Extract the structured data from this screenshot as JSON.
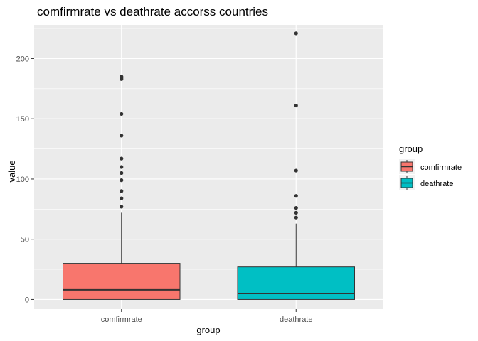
{
  "chart_data": {
    "type": "box",
    "title": "comfirmrate vs deathrate accorss  countries",
    "xlabel": "group",
    "ylabel": "value",
    "categories": [
      "comfirmrate",
      "deathrate"
    ],
    "ylim": [
      -8,
      228
    ],
    "yticks": [
      0,
      50,
      100,
      150,
      200
    ],
    "grid": true,
    "legend": {
      "title": "group",
      "position": "right",
      "items": [
        {
          "label": "comfirmrate",
          "color": "#F8766D"
        },
        {
          "label": "deathrate",
          "color": "#00BFC4"
        }
      ]
    },
    "series": [
      {
        "name": "comfirmrate",
        "color": "#F8766D",
        "min": 0,
        "q1": 0,
        "median": 8,
        "q3": 30,
        "max": 72,
        "outliers": [
          77,
          84,
          90,
          99,
          105,
          110,
          117,
          136,
          154,
          183,
          184,
          185
        ]
      },
      {
        "name": "deathrate",
        "color": "#00BFC4",
        "min": 0,
        "q1": 0,
        "median": 5,
        "q3": 27,
        "max": 63,
        "outliers": [
          68,
          72,
          76,
          86,
          107,
          161,
          221
        ]
      }
    ]
  }
}
